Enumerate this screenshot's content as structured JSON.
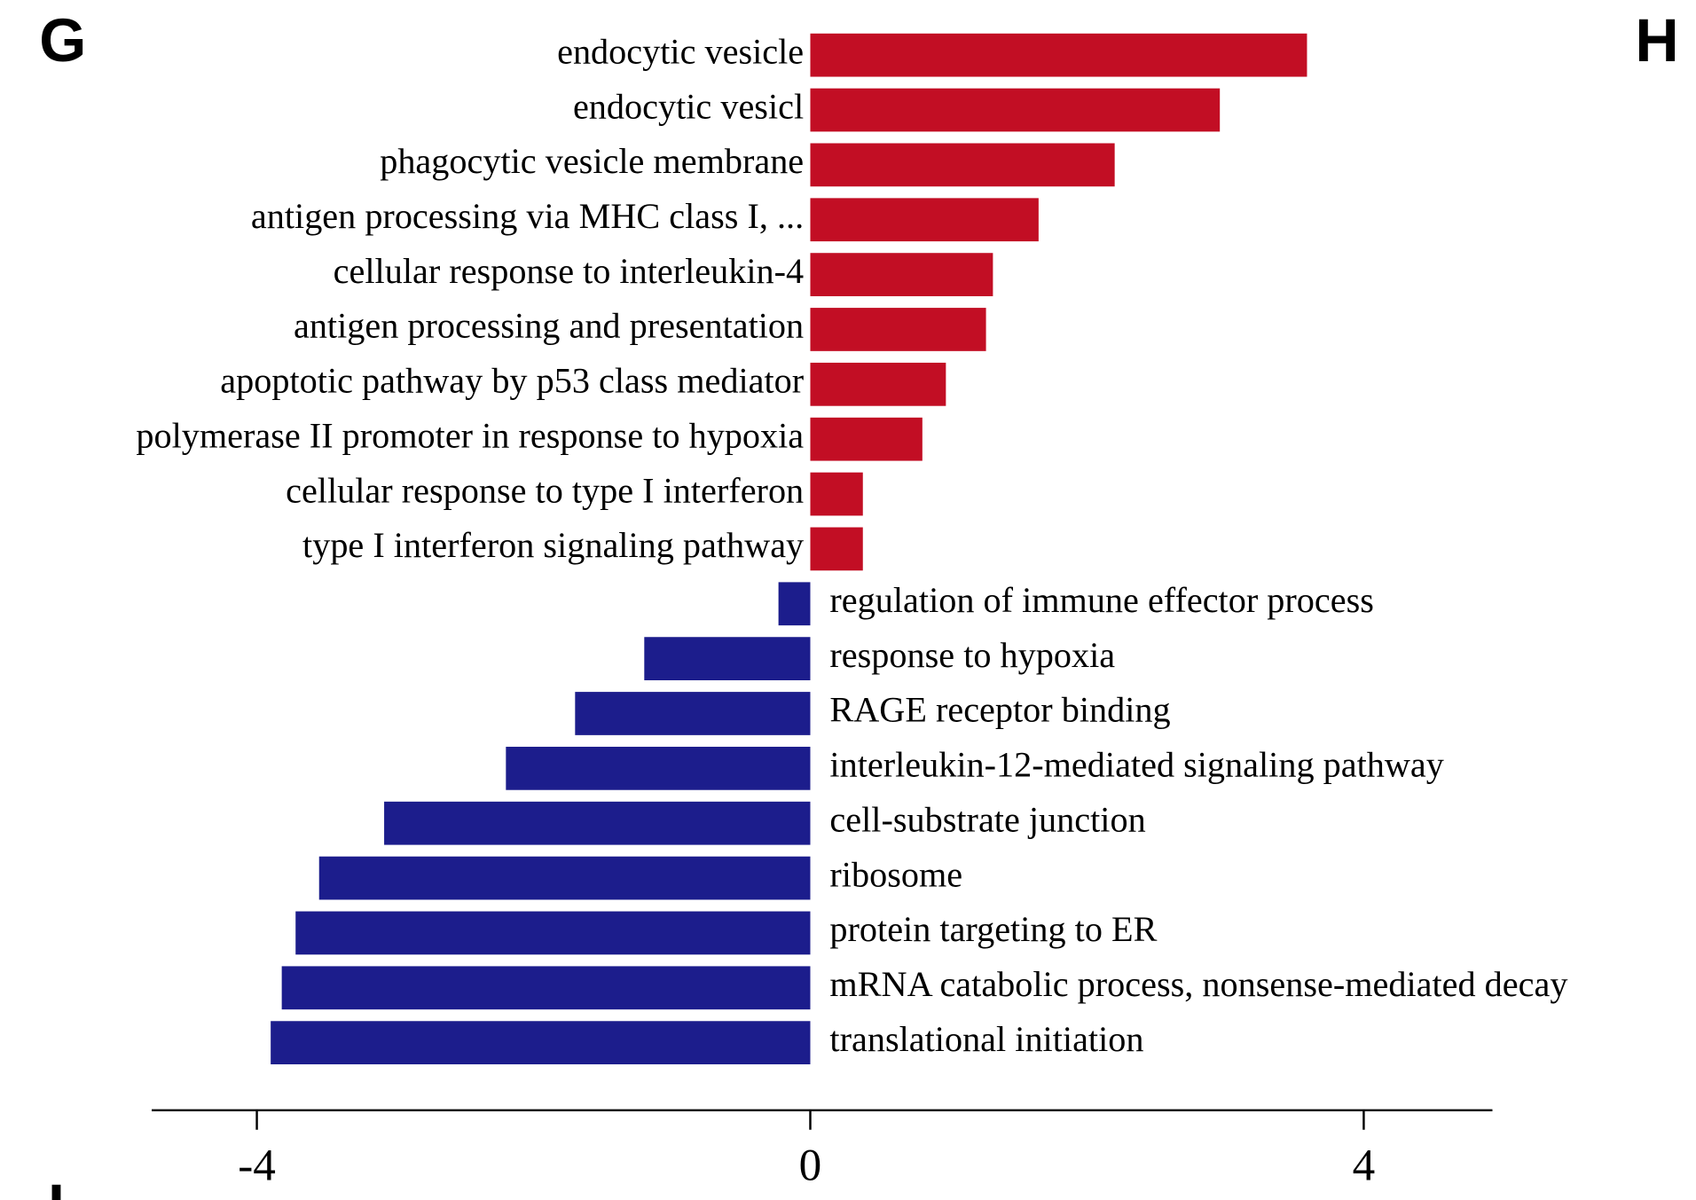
{
  "panels": [
    "G",
    "H",
    "I"
  ],
  "chart_data": {
    "type": "bar",
    "orientation": "horizontal",
    "categories": [
      "endocytic vesicle",
      "endocytic vesicl",
      "phagocytic vesicle membrane",
      "antigen processing via MHC class I, ...",
      "cellular response to interleukin-4",
      "antigen processing and presentation",
      "apoptotic  pathway by p53 class mediator",
      "polymerase II promoter in response to hypoxia",
      "cellular response to type I interferon",
      "type I interferon signaling pathway",
      "regulation of immune effector process",
      "response to hypoxia",
      "RAGE receptor binding",
      "interleukin-12-mediated signaling pathway",
      "cell-substrate junction",
      "ribosome",
      "protein targeting to ER",
      "mRNA catabolic process, nonsense-mediated decay",
      "translational initiation"
    ],
    "values": [
      3.59,
      2.96,
      2.2,
      1.65,
      1.32,
      1.27,
      0.98,
      0.81,
      0.38,
      0.38,
      -0.23,
      -1.2,
      -1.7,
      -2.2,
      -3.08,
      -3.55,
      -3.72,
      -3.82,
      -3.9
    ],
    "colors": {
      "positive": "#c20e24",
      "negative": "#1c1d8c"
    },
    "xlim": [
      -4.76,
      4.93
    ],
    "xticks": [
      -4,
      0,
      4
    ]
  }
}
